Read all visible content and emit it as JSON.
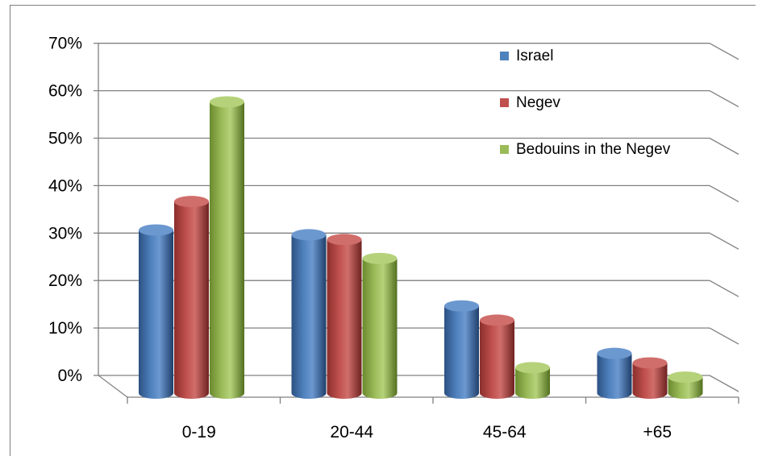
{
  "chart_data": {
    "type": "bar",
    "categories": [
      "0-19",
      "20-44",
      "45-64",
      "+65"
    ],
    "series": [
      {
        "name": "Israel",
        "values": [
          32,
          31,
          16,
          6
        ]
      },
      {
        "name": "Negev",
        "values": [
          38,
          30,
          13,
          4
        ]
      },
      {
        "name": "Bedouins in the Negev",
        "values": [
          59,
          26,
          3,
          1
        ]
      }
    ],
    "yticks": [
      "0%",
      "10%",
      "20%",
      "30%",
      "40%",
      "50%",
      "60%",
      "70%"
    ],
    "ylim": [
      0,
      70
    ],
    "grid": true,
    "legend": "top-right",
    "style": "3d-cylinder",
    "colors": [
      "#4f81bd",
      "#c0504d",
      "#9bbb59"
    ]
  }
}
